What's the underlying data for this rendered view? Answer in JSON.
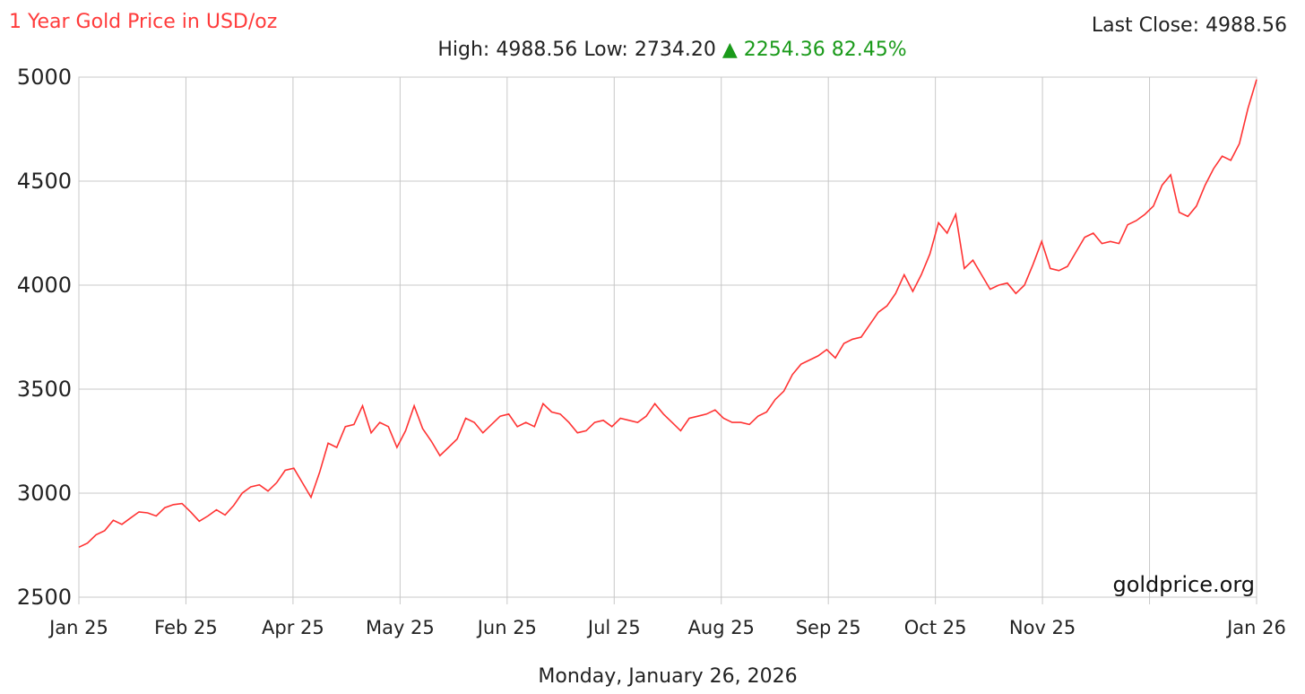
{
  "header": {
    "title": "1 Year Gold Price in USD/oz",
    "last_close_label": "Last Close:",
    "last_close_value": "4988.56",
    "high_label": "High:",
    "high_value": "4988.56",
    "low_label": "Low:",
    "low_value": "2734.20",
    "change_arrow": "▲",
    "change_value": "2254.36",
    "change_pct": "82.45%"
  },
  "watermark": "goldprice.org",
  "footer_date": "Monday, January 26, 2026",
  "colors": {
    "line": "#ff3333",
    "title": "#ff3b3b",
    "up": "#1a9a1a",
    "grid": "#c8c8c8"
  },
  "chart_data": {
    "type": "line",
    "title": "1 Year Gold Price in USD/oz",
    "xlabel": "",
    "ylabel": "",
    "ylim": [
      2500,
      5000
    ],
    "yticks": [
      2500,
      3000,
      3500,
      4000,
      4500,
      5000
    ],
    "xticks": [
      "Jan 25",
      "Feb 25",
      "Apr 25",
      "May 25",
      "Jun 25",
      "Jul 25",
      "Aug 25",
      "Sep 25",
      "Oct 25",
      "Nov 25",
      "",
      "Jan 26"
    ],
    "grid": true,
    "series": [
      {
        "name": "",
        "color": "#ff3333",
        "values": [
          2740,
          2760,
          2800,
          2820,
          2870,
          2850,
          2880,
          2910,
          2905,
          2890,
          2930,
          2945,
          2950,
          2910,
          2865,
          2890,
          2920,
          2895,
          2940,
          3000,
          3030,
          3040,
          3010,
          3050,
          3110,
          3120,
          3050,
          2980,
          3100,
          3240,
          3220,
          3320,
          3330,
          3420,
          3290,
          3340,
          3320,
          3220,
          3300,
          3420,
          3310,
          3250,
          3180,
          3220,
          3260,
          3360,
          3340,
          3290,
          3330,
          3370,
          3380,
          3320,
          3340,
          3320,
          3430,
          3390,
          3380,
          3340,
          3290,
          3300,
          3340,
          3350,
          3320,
          3360,
          3350,
          3340,
          3370,
          3430,
          3380,
          3340,
          3300,
          3360,
          3370,
          3380,
          3400,
          3360,
          3340,
          3340,
          3330,
          3370,
          3390,
          3450,
          3490,
          3570,
          3620,
          3640,
          3660,
          3690,
          3650,
          3720,
          3740,
          3750,
          3810,
          3870,
          3900,
          3960,
          4050,
          3970,
          4050,
          4150,
          4300,
          4250,
          4340,
          4080,
          4120,
          4050,
          3980,
          4000,
          4010,
          3960,
          4000,
          4100,
          4210,
          4080,
          4070,
          4090,
          4160,
          4230,
          4250,
          4200,
          4210,
          4200,
          4290,
          4310,
          4340,
          4380,
          4480,
          4530,
          4350,
          4330,
          4380,
          4480,
          4560,
          4620,
          4600,
          4680,
          4850,
          4988.56
        ]
      }
    ]
  }
}
